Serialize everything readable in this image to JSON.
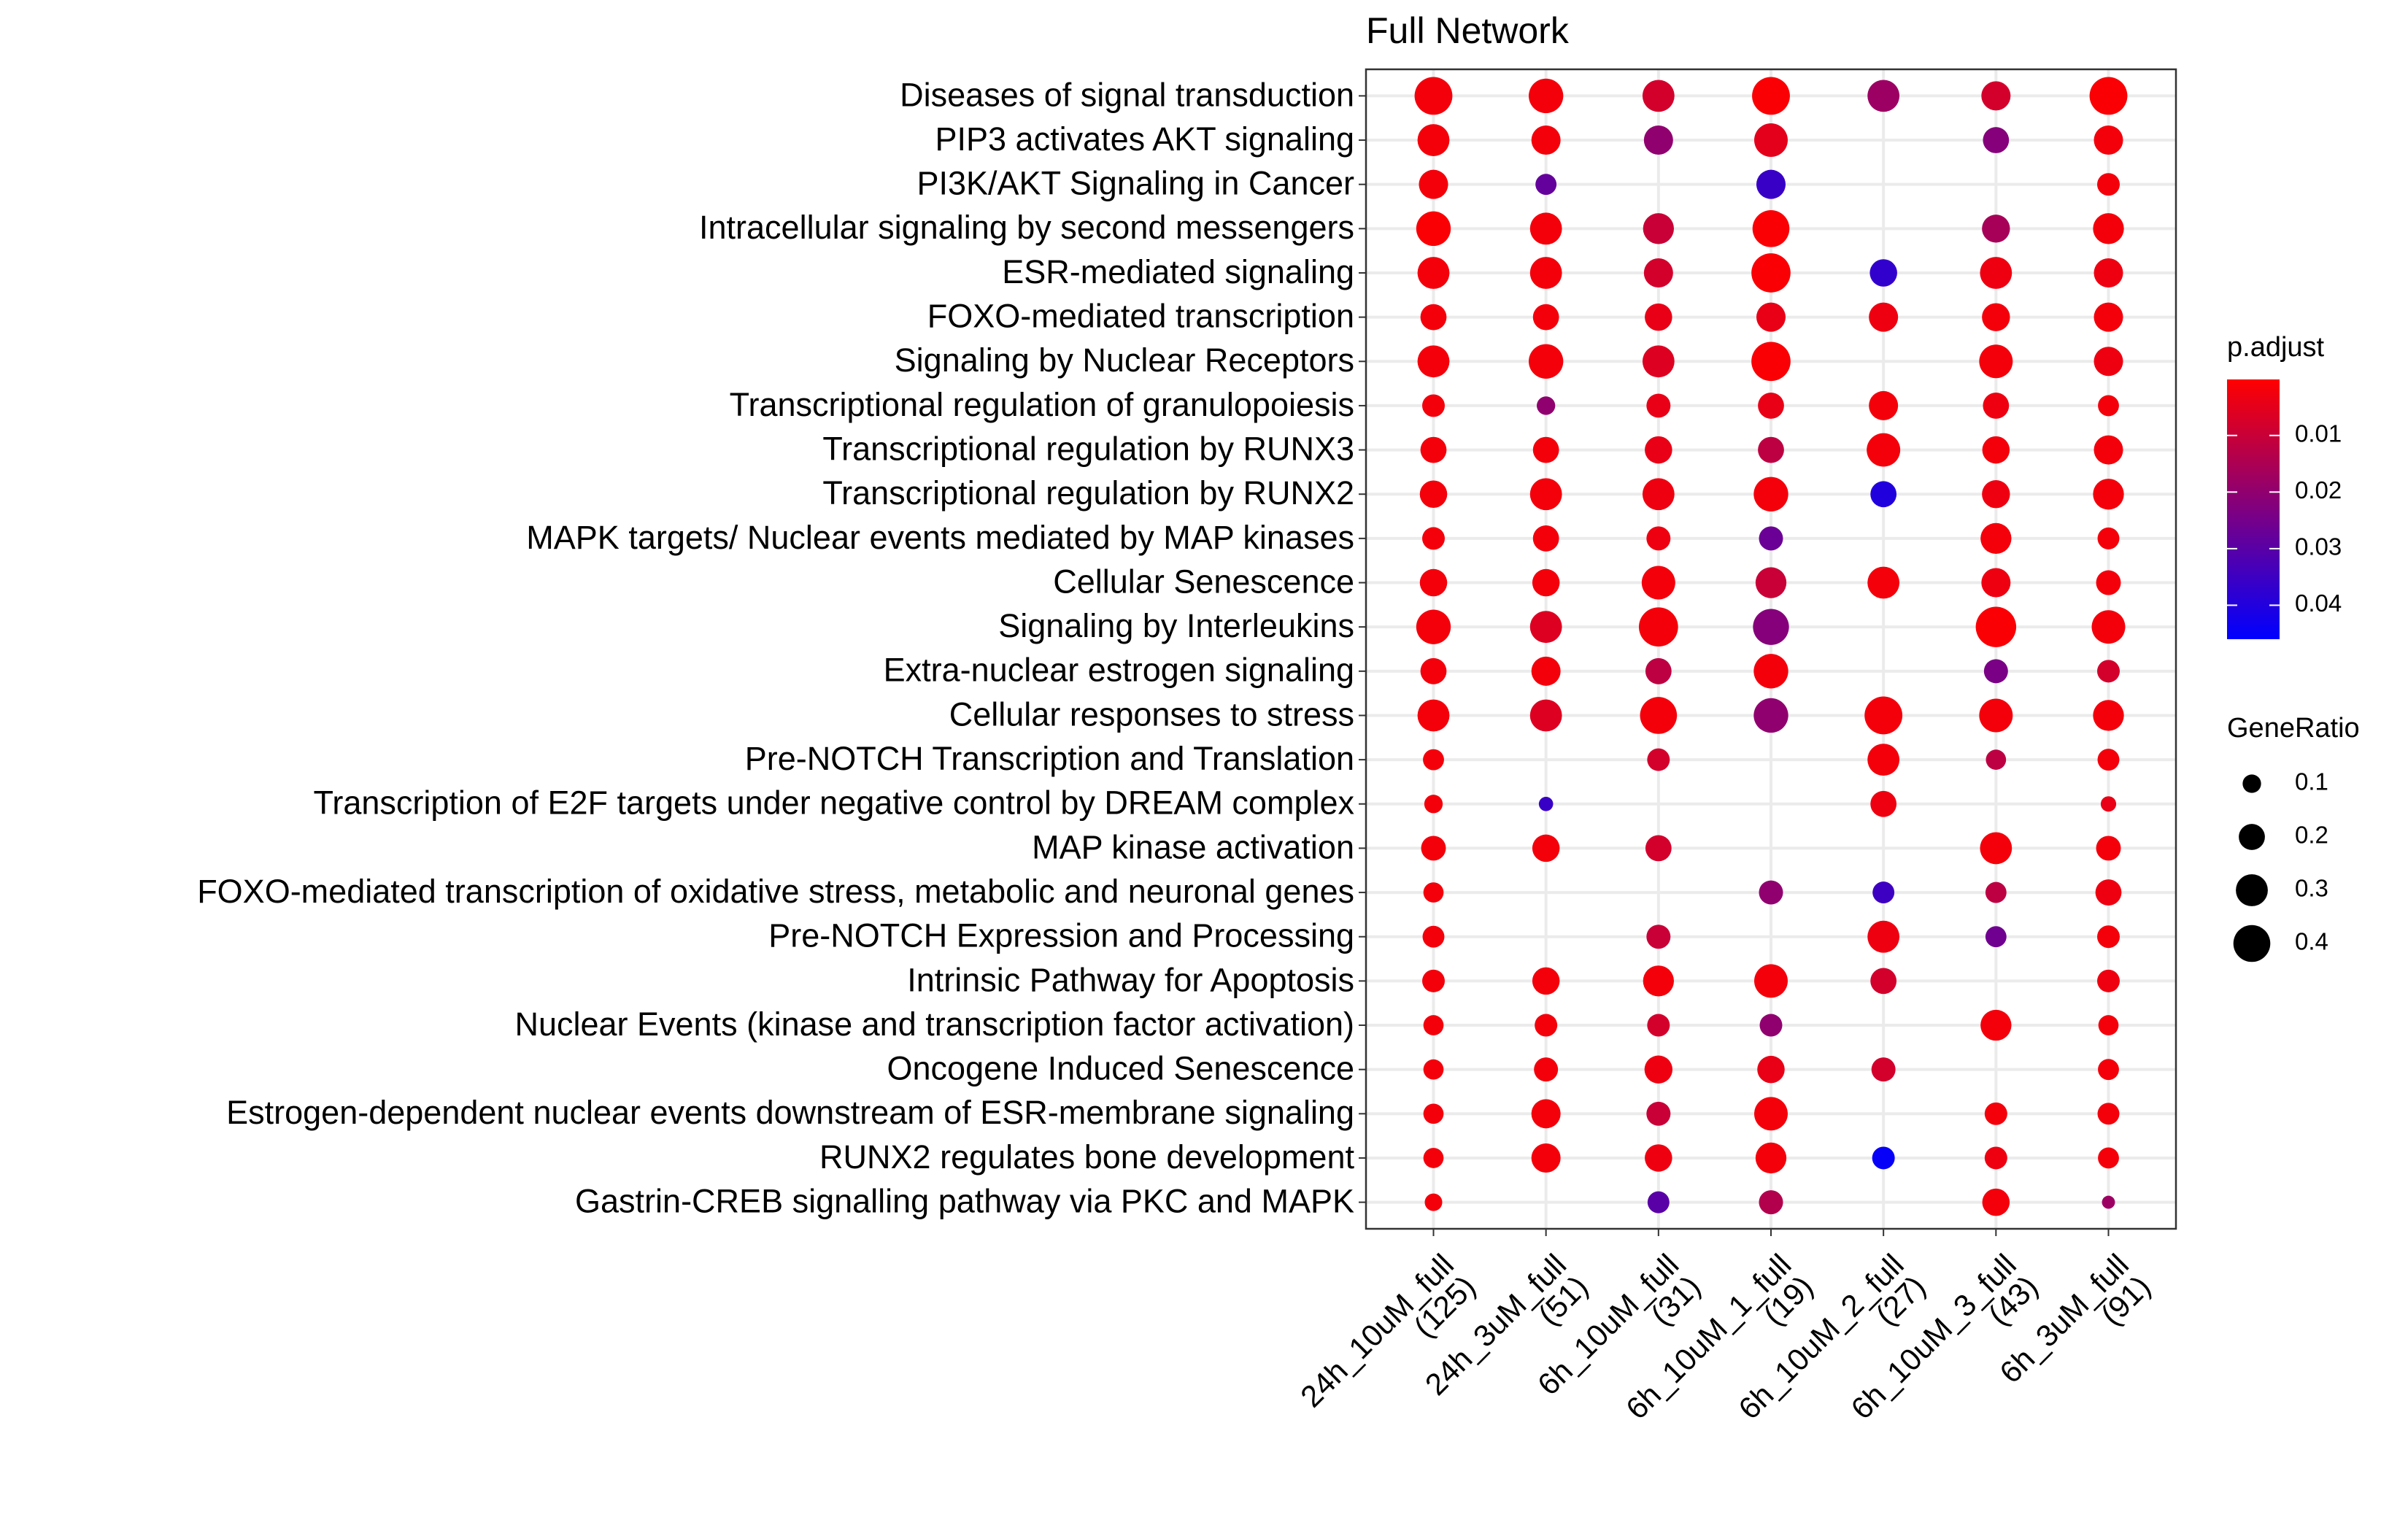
{
  "chart_data": {
    "type": "dot",
    "title": "Full Network",
    "x_categories": [
      [
        "24h_10uM_full",
        "(125)"
      ],
      [
        "24h_3uM_full",
        "(51)"
      ],
      [
        "6h_10uM_full",
        "(31)"
      ],
      [
        "6h_10uM_1_full",
        "(19)"
      ],
      [
        "6h_10uM_2_full",
        "(27)"
      ],
      [
        "6h_10uM_3_full",
        "(43)"
      ],
      [
        "6h_3uM_full",
        "(91)"
      ]
    ],
    "y_categories": [
      "Diseases of signal transduction",
      "PIP3 activates AKT signaling",
      "PI3K/AKT Signaling in Cancer",
      "Intracellular signaling by second messengers",
      "ESR-mediated signaling",
      "FOXO-mediated transcription",
      "Signaling by Nuclear Receptors",
      "Transcriptional regulation of granulopoiesis",
      "Transcriptional regulation by RUNX3",
      "Transcriptional regulation by RUNX2",
      "MAPK targets/ Nuclear events mediated by MAP kinases",
      "Cellular Senescence",
      "Signaling by Interleukins",
      "Extra-nuclear estrogen signaling",
      "Cellular responses to stress",
      "Pre-NOTCH Transcription and Translation",
      "Transcription of E2F targets under negative control by DREAM complex",
      "MAP kinase activation",
      "FOXO-mediated transcription of oxidative stress, metabolic and neuronal genes",
      "Pre-NOTCH Expression and Processing",
      "Intrinsic Pathway for Apoptosis",
      "Nuclear Events (kinase and transcription factor activation)",
      "Oncogene Induced Senescence",
      "Estrogen-dependent nuclear events downstream of ESR-membrane signaling",
      "RUNX2 regulates bone development",
      "Gastrin-CREB signalling pathway via PKC and MAPK"
    ],
    "gene_ratio": [
      [
        0.42,
        0.35,
        0.3,
        0.42,
        0.3,
        0.25,
        0.42
      ],
      [
        0.3,
        0.25,
        0.25,
        0.33,
        null,
        0.2,
        0.25
      ],
      [
        0.25,
        0.13,
        null,
        0.25,
        null,
        null,
        0.15
      ],
      [
        0.35,
        0.3,
        0.28,
        0.4,
        null,
        0.23,
        0.28
      ],
      [
        0.3,
        0.3,
        0.25,
        0.45,
        0.22,
        0.3,
        0.25
      ],
      [
        0.2,
        0.2,
        0.22,
        0.25,
        0.25,
        0.23,
        0.25
      ],
      [
        0.3,
        0.35,
        0.3,
        0.45,
        null,
        0.33,
        0.25
      ],
      [
        0.15,
        0.1,
        0.17,
        0.2,
        0.25,
        0.2,
        0.13
      ],
      [
        0.2,
        0.2,
        0.22,
        0.2,
        0.33,
        0.22,
        0.25
      ],
      [
        0.22,
        0.3,
        0.3,
        0.35,
        0.2,
        0.23,
        0.28
      ],
      [
        0.15,
        0.2,
        0.17,
        0.17,
        null,
        0.28,
        0.14
      ],
      [
        0.22,
        0.22,
        0.33,
        0.28,
        0.3,
        0.25,
        0.18
      ],
      [
        0.35,
        0.3,
        0.45,
        0.38,
        null,
        0.48,
        0.33
      ],
      [
        0.2,
        0.25,
        0.2,
        0.35,
        null,
        0.17,
        0.15
      ],
      [
        0.3,
        0.3,
        0.4,
        0.35,
        0.42,
        0.33,
        0.28
      ],
      [
        0.13,
        null,
        0.15,
        null,
        0.3,
        0.12,
        0.14
      ],
      [
        0.1,
        0.06,
        null,
        null,
        0.2,
        null,
        0.07
      ],
      [
        0.18,
        0.22,
        0.2,
        null,
        null,
        0.3,
        0.18
      ],
      [
        0.12,
        null,
        null,
        0.17,
        0.14,
        0.13,
        0.2
      ],
      [
        0.14,
        null,
        0.17,
        null,
        0.3,
        0.13,
        0.15
      ],
      [
        0.15,
        0.22,
        0.28,
        0.33,
        0.2,
        null,
        0.15
      ],
      [
        0.12,
        0.15,
        0.15,
        0.15,
        null,
        0.28,
        0.12
      ],
      [
        0.12,
        0.17,
        0.23,
        0.22,
        0.17,
        null,
        0.13
      ],
      [
        0.12,
        0.25,
        0.17,
        0.33,
        null,
        0.15,
        0.14
      ],
      [
        0.12,
        0.25,
        0.22,
        0.28,
        0.15,
        0.15,
        0.13
      ],
      [
        0.09,
        null,
        0.14,
        0.17,
        null,
        0.22,
        0.05
      ]
    ],
    "p_adjust": [
      [
        0.002,
        0.002,
        0.008,
        0.001,
        0.018,
        0.008,
        0.001
      ],
      [
        0.002,
        0.002,
        0.02,
        0.005,
        null,
        0.022,
        0.002
      ],
      [
        0.002,
        0.028,
        null,
        0.036,
        null,
        null,
        0.002
      ],
      [
        0.001,
        0.002,
        0.01,
        0.001,
        null,
        0.016,
        0.002
      ],
      [
        0.002,
        0.002,
        0.008,
        0.001,
        0.037,
        0.003,
        0.003
      ],
      [
        0.002,
        0.002,
        0.004,
        0.004,
        0.003,
        0.002,
        0.002
      ],
      [
        0.002,
        0.002,
        0.006,
        0.001,
        null,
        0.002,
        0.003
      ],
      [
        0.002,
        0.02,
        0.004,
        0.004,
        0.002,
        0.003,
        0.002
      ],
      [
        0.002,
        0.002,
        0.004,
        0.012,
        0.002,
        0.002,
        0.002
      ],
      [
        0.002,
        0.002,
        0.003,
        0.002,
        0.04,
        0.003,
        0.002
      ],
      [
        0.002,
        0.002,
        0.003,
        0.027,
        null,
        0.002,
        0.002
      ],
      [
        0.002,
        0.002,
        0.002,
        0.01,
        0.002,
        0.003,
        0.002
      ],
      [
        0.002,
        0.006,
        0.002,
        0.022,
        null,
        0.001,
        0.002
      ],
      [
        0.002,
        0.002,
        0.012,
        0.002,
        null,
        0.024,
        0.008
      ],
      [
        0.002,
        0.006,
        0.002,
        0.02,
        0.002,
        0.002,
        0.002
      ],
      [
        0.002,
        null,
        0.008,
        null,
        0.002,
        0.012,
        0.002
      ],
      [
        0.002,
        0.036,
        null,
        null,
        0.003,
        null,
        0.004
      ],
      [
        0.002,
        0.002,
        0.008,
        null,
        null,
        0.002,
        0.002
      ],
      [
        0.002,
        null,
        null,
        0.02,
        0.035,
        0.012,
        0.003
      ],
      [
        0.002,
        null,
        0.01,
        null,
        0.003,
        0.026,
        0.002
      ],
      [
        0.002,
        0.002,
        0.002,
        0.002,
        0.008,
        null,
        0.003
      ],
      [
        0.002,
        0.002,
        0.008,
        0.02,
        null,
        0.002,
        0.002
      ],
      [
        0.002,
        0.002,
        0.003,
        0.004,
        0.008,
        null,
        0.002
      ],
      [
        0.002,
        0.002,
        0.01,
        0.002,
        null,
        0.002,
        0.002
      ],
      [
        0.002,
        0.002,
        0.003,
        0.002,
        0.045,
        0.003,
        0.002
      ],
      [
        0.002,
        null,
        0.03,
        0.014,
        null,
        0.002,
        0.018
      ]
    ],
    "color_legend": {
      "title": "p.adjust",
      "lim": [
        0.0001,
        0.046
      ],
      "ticks": [
        0.01,
        0.02,
        0.03,
        0.04
      ],
      "low_color": "#ff0000",
      "high_color": "#0000ff"
    },
    "size_legend": {
      "title": "GeneRatio",
      "values": [
        0.1,
        0.2,
        0.3,
        0.4
      ]
    },
    "grid": true
  }
}
